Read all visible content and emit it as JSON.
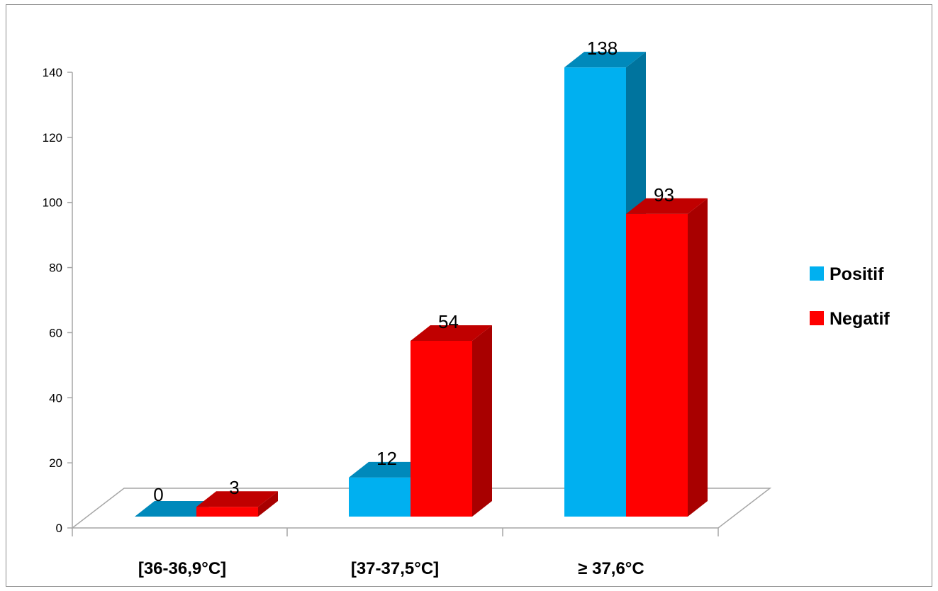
{
  "chart_data": {
    "type": "bar",
    "style": "3d-clustered-column",
    "categories": [
      "[36-36,9°C]",
      "[37-37,5°C]",
      "≥ 37,6°C"
    ],
    "series": [
      {
        "name": "Positif",
        "values": [
          0,
          12,
          138
        ],
        "color": "#00b0f0",
        "side_color": "#00749e",
        "top_color": "#0089bb"
      },
      {
        "name": "Negatif",
        "values": [
          3,
          54,
          93
        ],
        "color": "#ff0000",
        "side_color": "#a80000",
        "top_color": "#c00000"
      }
    ],
    "ylim": [
      0,
      140
    ],
    "yticks": [
      0,
      20,
      40,
      60,
      80,
      100,
      120,
      140
    ],
    "legend_position": "right",
    "grid": false,
    "data_labels": true
  }
}
